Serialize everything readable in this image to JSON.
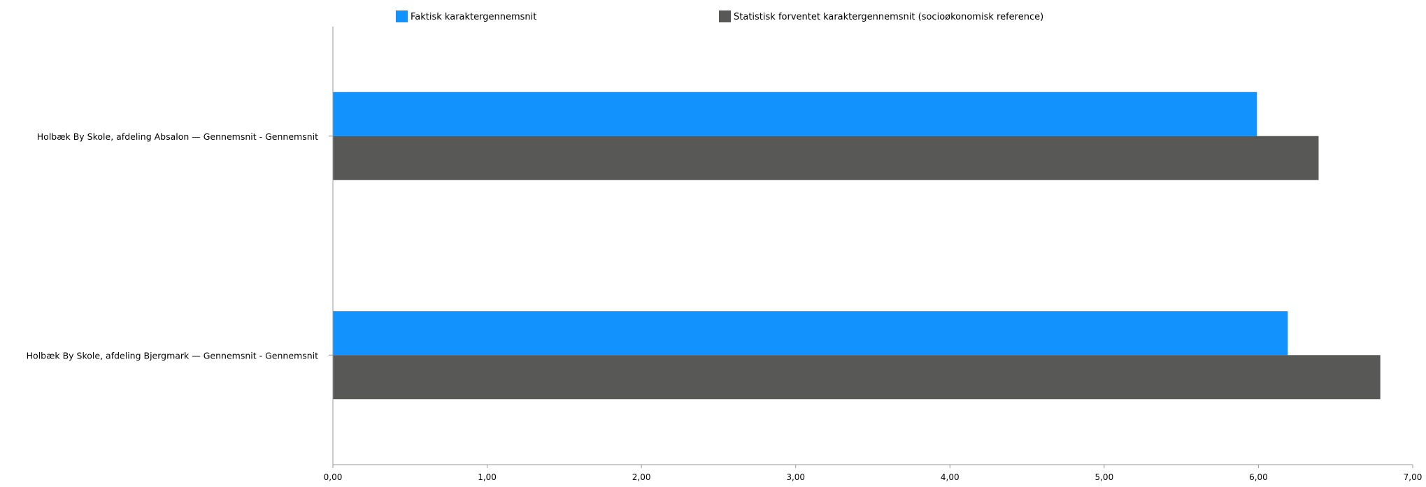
{
  "chart_data": {
    "type": "bar",
    "orientation": "horizontal",
    "categories": [
      "Holbæk By Skole, afdeling Absalon — Gennemsnit - Gennemsnit",
      "Holbæk By Skole, afdeling Bjergmark — Gennemsnit - Gennemsnit"
    ],
    "series": [
      {
        "name": "Faktisk karaktergennemsnit",
        "color": "#1192fc",
        "values": [
          5.99,
          6.19
        ]
      },
      {
        "name": "Statistisk forventet karaktergennemsnit (socioøkonomisk reference)",
        "color": "#585856",
        "values": [
          6.39,
          6.79
        ]
      }
    ],
    "xlim": [
      0,
      7
    ],
    "xticks": [
      "0,00",
      "1,00",
      "2,00",
      "3,00",
      "4,00",
      "5,00",
      "6,00",
      "7,00"
    ],
    "grid": false,
    "legend_position": "top"
  }
}
